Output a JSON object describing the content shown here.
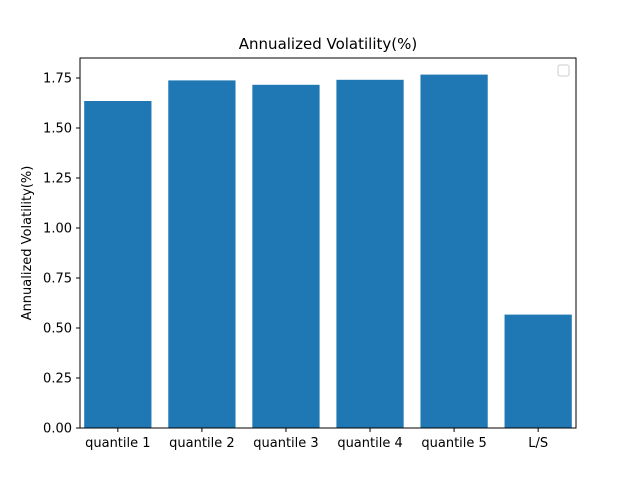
{
  "chart_data": {
    "type": "bar",
    "title": "Annualized Volatility(%)",
    "xlabel": "",
    "ylabel": "Annualized Volatility(%)",
    "categories": [
      "quantile 1",
      "quantile 2",
      "quantile 3",
      "quantile 4",
      "quantile 5",
      "L/S"
    ],
    "values": [
      1.635,
      1.738,
      1.716,
      1.741,
      1.767,
      0.567
    ],
    "ylim": [
      0,
      1.85
    ],
    "yticks": [
      0.0,
      0.25,
      0.5,
      0.75,
      1.0,
      1.25,
      1.5,
      1.75
    ],
    "ytick_labels": [
      "0.00",
      "0.25",
      "0.50",
      "0.75",
      "1.00",
      "1.25",
      "1.50",
      "1.75"
    ],
    "bar_color": "#1f77b4",
    "grid": false,
    "legend": {
      "placement": "upper-right",
      "entries": []
    }
  }
}
